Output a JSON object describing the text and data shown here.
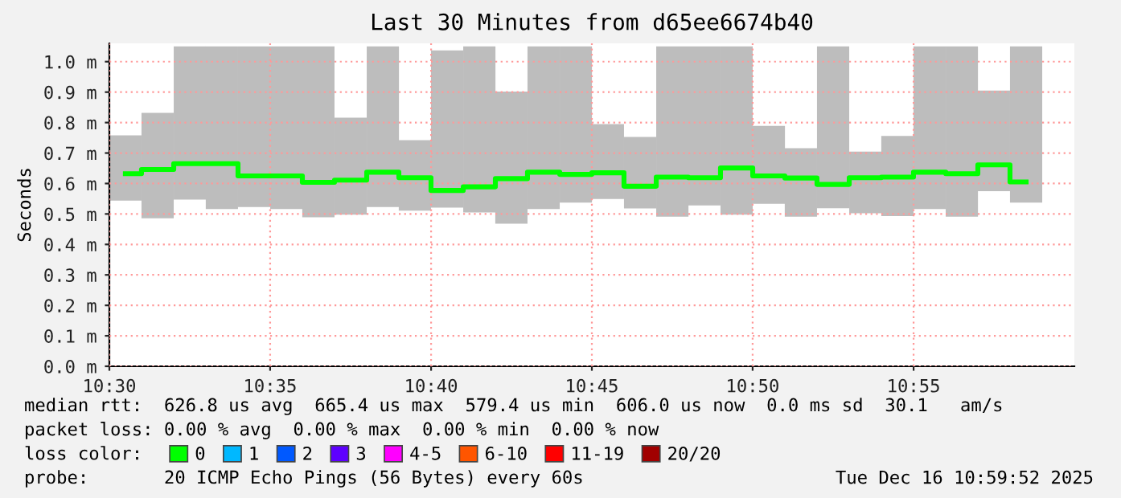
{
  "chart_data": {
    "type": "bar",
    "title": "Last 30 Minutes from d65ee6674b40",
    "ylabel": "Seconds",
    "x": [
      10.5083,
      10.525,
      10.5417,
      10.5583,
      10.575,
      10.5917,
      10.6083,
      10.625,
      10.6417,
      10.6583,
      10.675,
      10.6917,
      10.7083,
      10.725,
      10.7417,
      10.7583,
      10.775,
      10.7917,
      10.8083,
      10.825,
      10.8417,
      10.8583,
      10.875,
      10.8917,
      10.9083,
      10.925,
      10.9417,
      10.9583,
      10.975
    ],
    "series": [
      {
        "color": "#bdbdbd",
        "base": [
          0.544,
          0.486,
          0.547,
          0.516,
          0.523,
          0.516,
          0.489,
          0.498,
          0.523,
          0.511,
          0.521,
          0.505,
          0.468,
          0.516,
          0.537,
          0.549,
          0.518,
          0.491,
          0.528,
          0.498,
          0.533,
          0.491,
          0.519,
          0.502,
          0.493,
          0.516,
          0.491,
          0.575,
          0.537
        ],
        "values": [
          0.214,
          0.346,
          0.503,
          0.534,
          0.527,
          0.534,
          0.561,
          0.318,
          0.527,
          0.231,
          0.516,
          0.545,
          0.434,
          0.534,
          0.513,
          0.246,
          0.235,
          0.559,
          0.522,
          0.552,
          0.256,
          0.225,
          0.531,
          0.203,
          0.263,
          0.534,
          0.559,
          0.33,
          0.513
        ]
      },
      {
        "type": "step",
        "name": "0",
        "color": "#00ff00",
        "values": [
          0.632,
          0.646,
          0.665,
          0.665,
          0.625,
          0.625,
          0.604,
          0.611,
          0.637,
          0.619,
          0.577,
          0.589,
          0.616,
          0.637,
          0.63,
          0.635,
          0.591,
          0.621,
          0.619,
          0.651,
          0.625,
          0.618,
          0.597,
          0.619,
          0.621,
          0.637,
          0.632,
          0.661,
          0.605
        ]
      },
      {
        "type": "step",
        "name": "1",
        "color": "#00b8ff",
        "values": [
          null,
          null,
          null,
          null,
          null,
          null,
          null,
          null,
          null,
          null,
          null,
          null,
          null,
          null,
          null,
          null,
          null,
          null,
          null,
          null,
          null,
          null,
          null,
          null,
          null,
          null,
          null,
          null,
          null
        ]
      },
      {
        "type": "step",
        "name": "2",
        "color": "#0059ff",
        "values": [
          null,
          null,
          null,
          null,
          null,
          null,
          null,
          null,
          null,
          null,
          null,
          null,
          null,
          null,
          null,
          null,
          null,
          null,
          null,
          null,
          null,
          null,
          null,
          null,
          null,
          null,
          null,
          null,
          null
        ]
      },
      {
        "type": "step",
        "name": "3",
        "color": "#5e00ff",
        "values": [
          null,
          null,
          null,
          null,
          null,
          null,
          null,
          null,
          null,
          null,
          null,
          null,
          null,
          null,
          null,
          null,
          null,
          null,
          null,
          null,
          null,
          null,
          null,
          null,
          null,
          null,
          null,
          null,
          null
        ]
      },
      {
        "type": "step",
        "name": "4-5",
        "color": "#ff00ff",
        "values": [
          null,
          null,
          null,
          null,
          null,
          null,
          null,
          null,
          null,
          null,
          null,
          null,
          null,
          null,
          null,
          null,
          null,
          null,
          null,
          null,
          null,
          null,
          null,
          null,
          null,
          null,
          null,
          null,
          null
        ]
      },
      {
        "type": "step",
        "name": "6-10",
        "color": "#ff5500",
        "values": [
          null,
          null,
          null,
          null,
          null,
          null,
          null,
          null,
          null,
          null,
          null,
          null,
          null,
          null,
          null,
          null,
          null,
          null,
          null,
          null,
          null,
          null,
          null,
          null,
          null,
          null,
          null,
          null,
          null
        ]
      },
      {
        "type": "step",
        "name": "11-19",
        "color": "#ff0000",
        "values": [
          null,
          null,
          null,
          null,
          null,
          null,
          null,
          null,
          null,
          null,
          null,
          null,
          null,
          null,
          null,
          null,
          null,
          null,
          null,
          null,
          null,
          null,
          null,
          null,
          null,
          null,
          null,
          null,
          null
        ]
      },
      {
        "type": "step",
        "name": "20/20",
        "color": "#a10000",
        "values": [
          null,
          null,
          null,
          null,
          null,
          null,
          null,
          null,
          null,
          null,
          null,
          null,
          null,
          null,
          null,
          null,
          null,
          null,
          null,
          null,
          null,
          null,
          null,
          null,
          null,
          null,
          null,
          null,
          null
        ]
      }
    ],
    "xlim": [
      10.5,
      11.0
    ],
    "xticks": [
      {
        "value": 10.5,
        "label": "10:30"
      },
      {
        "value": 10.5833,
        "label": "10:35"
      },
      {
        "value": 10.6667,
        "label": "10:40"
      },
      {
        "value": 10.75,
        "label": "10:45"
      },
      {
        "value": 10.8333,
        "label": "10:50"
      },
      {
        "value": 10.9167,
        "label": "10:55"
      }
    ],
    "ylim": [
      0,
      1.06
    ],
    "yticks": [
      {
        "value": 0,
        "label": "0.0 m"
      },
      {
        "value": 0.1,
        "label": "0.1 m"
      },
      {
        "value": 0.2,
        "label": "0.2 m"
      },
      {
        "value": 0.3,
        "label": "0.3 m"
      },
      {
        "value": 0.4,
        "label": "0.4 m"
      },
      {
        "value": 0.5,
        "label": "0.5 m"
      },
      {
        "value": 0.6,
        "label": "0.6 m"
      },
      {
        "value": 0.7,
        "label": "0.7 m"
      },
      {
        "value": 0.8,
        "label": "0.8 m"
      },
      {
        "value": 0.9,
        "label": "0.9 m"
      },
      {
        "value": 1.0,
        "label": "1.0 m"
      }
    ],
    "grid": true,
    "legend": "bottom",
    "annotations": [
      "median rtt:  626.8 us avg  665.4 us max  579.4 us min  606.0 us now  0.0 ms sd  30.1   am/s",
      "packet loss: 0.00 % avg  0.00 % max  0.00 % min  0.00 % now",
      "loss color:",
      "probe:       20 ICMP Echo Pings (56 Bytes) every 60s",
      "Tue Dec 16 10:59:52 2025"
    ]
  }
}
